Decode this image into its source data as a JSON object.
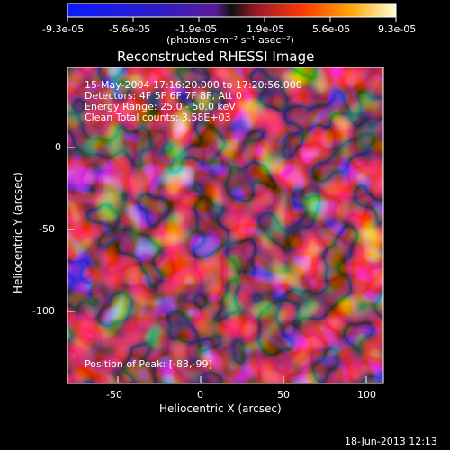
{
  "colorbar": {
    "tick_labels": [
      "-9.3e-05",
      "-5.6e-05",
      "-1.9e-05",
      "1.9e-05",
      "5.6e-05",
      "9.3e-05"
    ],
    "units": "(photons cm⁻² s⁻¹ asec⁻²)"
  },
  "plot": {
    "title": "Reconstructed RHESSI Image",
    "info_lines": [
      "15-May-2004 17:16:20.000 to 17:20:56.000",
      "Detectors: 4F 5F 6F 7F 8F, Att 0",
      "Energy Range: 25.0 - 50.0 keV",
      "Clean    Total counts: 3.58E+03"
    ],
    "peak_text": "Position of Peak: [-83,-99]",
    "xlabel": "Heliocentric X (arcsec)",
    "ylabel": "Heliocentric Y (arcsec)",
    "x_ticks": [
      "-50",
      "0",
      "50",
      "100"
    ],
    "y_ticks": [
      "0",
      "-50",
      "-100"
    ]
  },
  "footer": {
    "timestamp": "18-Jun-2013 12:13"
  }
}
